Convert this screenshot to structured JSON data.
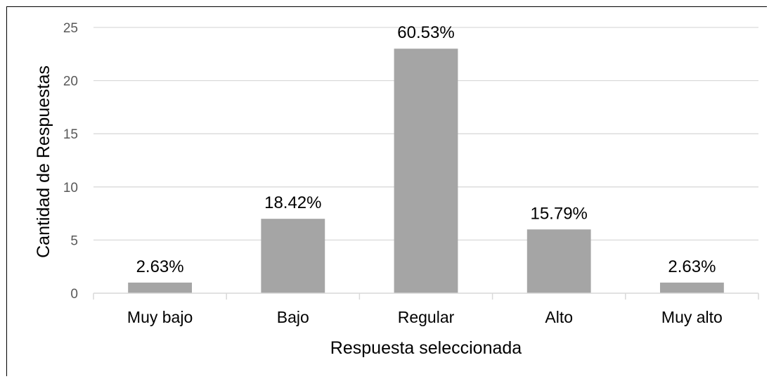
{
  "chart_data": {
    "type": "bar",
    "categories": [
      "Muy bajo",
      "Bajo",
      "Regular",
      "Alto",
      "Muy alto"
    ],
    "values": [
      1,
      7,
      23,
      6,
      1
    ],
    "data_labels": [
      "2.63%",
      "18.42%",
      "60.53%",
      "15.79%",
      "2.63%"
    ],
    "xlabel": "Respuesta seleccionada",
    "ylabel": "Cantidad de Respuestas",
    "ylim": [
      0,
      25
    ],
    "yticks": [
      0,
      5,
      10,
      15,
      20,
      25
    ],
    "grid": true,
    "bar_color": "#a5a5a5",
    "grid_color": "#d9d9d9"
  }
}
